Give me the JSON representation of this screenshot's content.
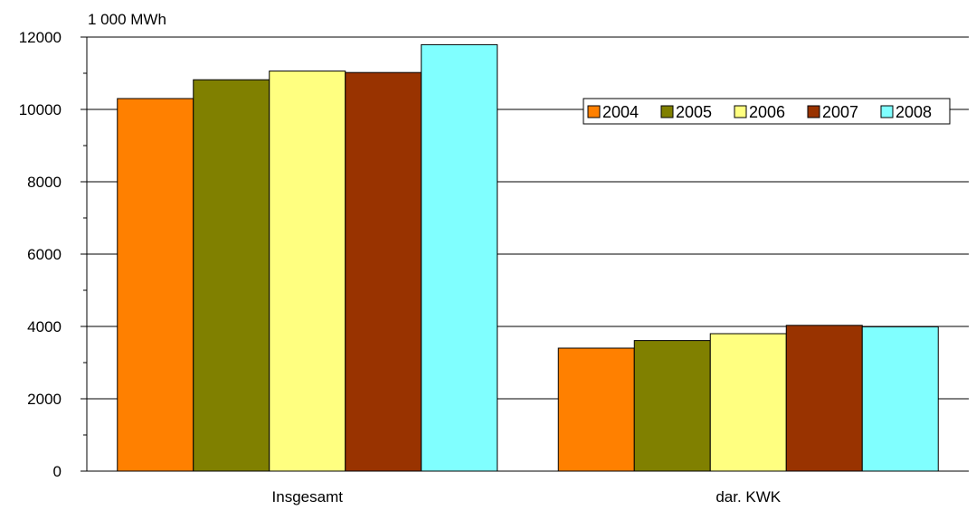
{
  "chart_data": {
    "type": "bar",
    "unit_label": "1 000 MWh",
    "categories": [
      "Insgesamt",
      "dar. KWK"
    ],
    "series": [
      {
        "name": "2004",
        "color": "#ff8000",
        "values": [
          10300,
          3400
        ]
      },
      {
        "name": "2005",
        "color": "#808000",
        "values": [
          10820,
          3610
        ]
      },
      {
        "name": "2006",
        "color": "#ffff80",
        "values": [
          11060,
          3800
        ]
      },
      {
        "name": "2007",
        "color": "#993300",
        "values": [
          11020,
          4030
        ]
      },
      {
        "name": "2008",
        "color": "#80ffff",
        "values": [
          11790,
          3990
        ]
      }
    ],
    "ylim": [
      0,
      12000
    ],
    "yticks": [
      "0",
      "2000",
      "4000",
      "6000",
      "8000",
      "10000",
      "12000"
    ],
    "minor_tick_step": 1000,
    "grid": true,
    "legend_position": "top-right"
  }
}
